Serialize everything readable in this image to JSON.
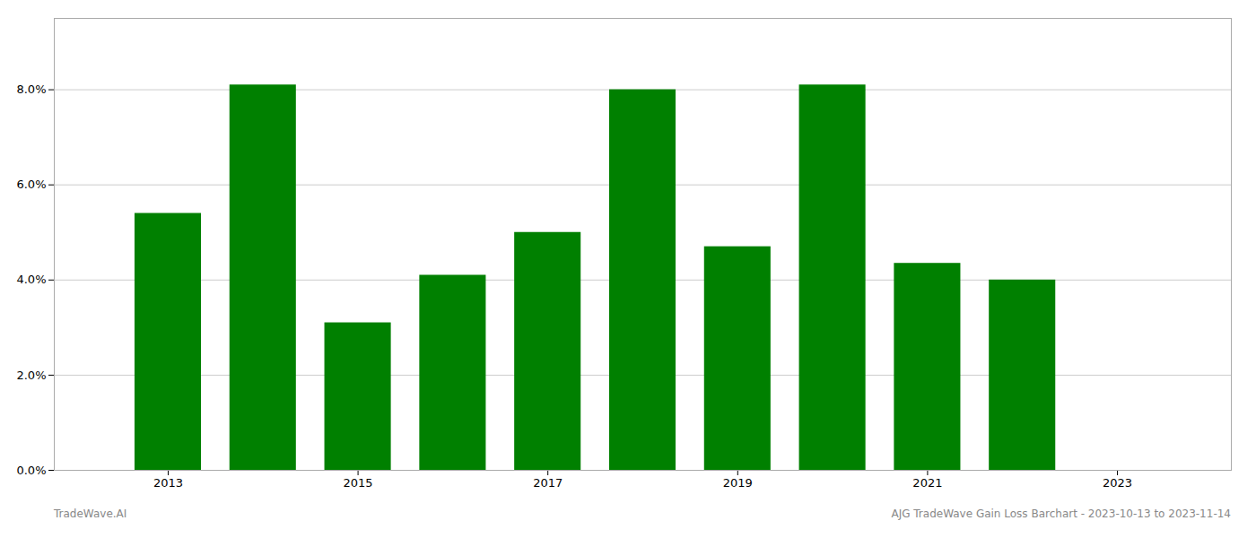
{
  "chart_data": {
    "type": "bar",
    "x": [
      2013,
      2014,
      2015,
      2016,
      2017,
      2018,
      2019,
      2020,
      2021,
      2022
    ],
    "values": [
      0.054,
      0.081,
      0.031,
      0.041,
      0.05,
      0.08,
      0.047,
      0.081,
      0.0435,
      0.04
    ],
    "color": "#008000",
    "xlim": [
      2011.8,
      2024.2
    ],
    "xticks": [
      2013,
      2015,
      2017,
      2019,
      2021,
      2023
    ],
    "ylim": [
      0,
      0.095
    ],
    "yticks": [
      {
        "value": 0.0,
        "label": "0.0%"
      },
      {
        "value": 0.02,
        "label": "2.0%"
      },
      {
        "value": 0.04,
        "label": "4.0%"
      },
      {
        "value": 0.06,
        "label": "6.0%"
      },
      {
        "value": 0.08,
        "label": "8.0%"
      }
    ],
    "grid": true,
    "annotations": [
      "TradeWave.AI",
      "AJG TradeWave Gain Loss Barchart - 2023-10-13 to 2023-11-14"
    ]
  }
}
